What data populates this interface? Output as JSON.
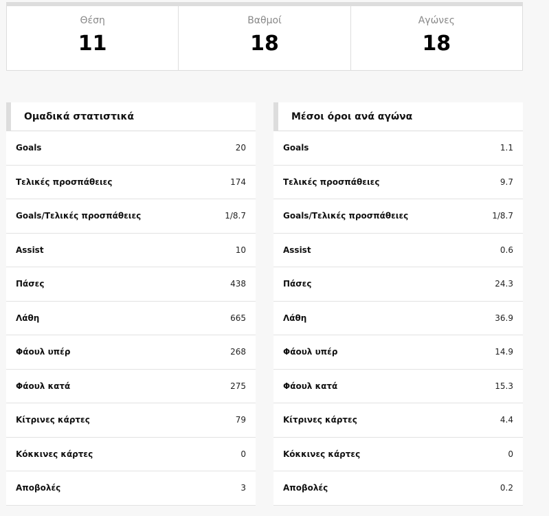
{
  "summary": [
    {
      "label": "Θέση",
      "value": "11"
    },
    {
      "label": "Βαθμοί",
      "value": "18"
    },
    {
      "label": "Αγώνες",
      "value": "18"
    }
  ],
  "team_stats": {
    "title": "Ομαδικά στατιστικά",
    "rows": [
      {
        "label": "Goals",
        "value": "20"
      },
      {
        "label": "Τελικές προσπάθειες",
        "value": "174"
      },
      {
        "label": "Goals/Τελικές προσπάθειες",
        "value": "1/8.7"
      },
      {
        "label": "Assist",
        "value": "10"
      },
      {
        "label": "Πάσες",
        "value": "438"
      },
      {
        "label": "Λάθη",
        "value": "665"
      },
      {
        "label": "Φάουλ υπέρ",
        "value": "268"
      },
      {
        "label": "Φάουλ κατά",
        "value": "275"
      },
      {
        "label": "Κίτρινες κάρτες",
        "value": "79"
      },
      {
        "label": "Κόκκινες κάρτες",
        "value": "0"
      },
      {
        "label": "Αποβολές",
        "value": "3"
      }
    ]
  },
  "averages": {
    "title": "Μέσοι όροι ανά αγώνα",
    "rows": [
      {
        "label": "Goals",
        "value": "1.1"
      },
      {
        "label": "Τελικές προσπάθειες",
        "value": "9.7"
      },
      {
        "label": "Goals/Τελικές προσπάθειες",
        "value": "1/8.7"
      },
      {
        "label": "Assist",
        "value": "0.6"
      },
      {
        "label": "Πάσες",
        "value": "24.3"
      },
      {
        "label": "Λάθη",
        "value": "36.9"
      },
      {
        "label": "Φάουλ υπέρ",
        "value": "14.9"
      },
      {
        "label": "Φάουλ κατά",
        "value": "15.3"
      },
      {
        "label": "Κίτρινες κάρτες",
        "value": "4.4"
      },
      {
        "label": "Κόκκινες κάρτες",
        "value": "0"
      },
      {
        "label": "Αποβολές",
        "value": "0.2"
      }
    ]
  }
}
